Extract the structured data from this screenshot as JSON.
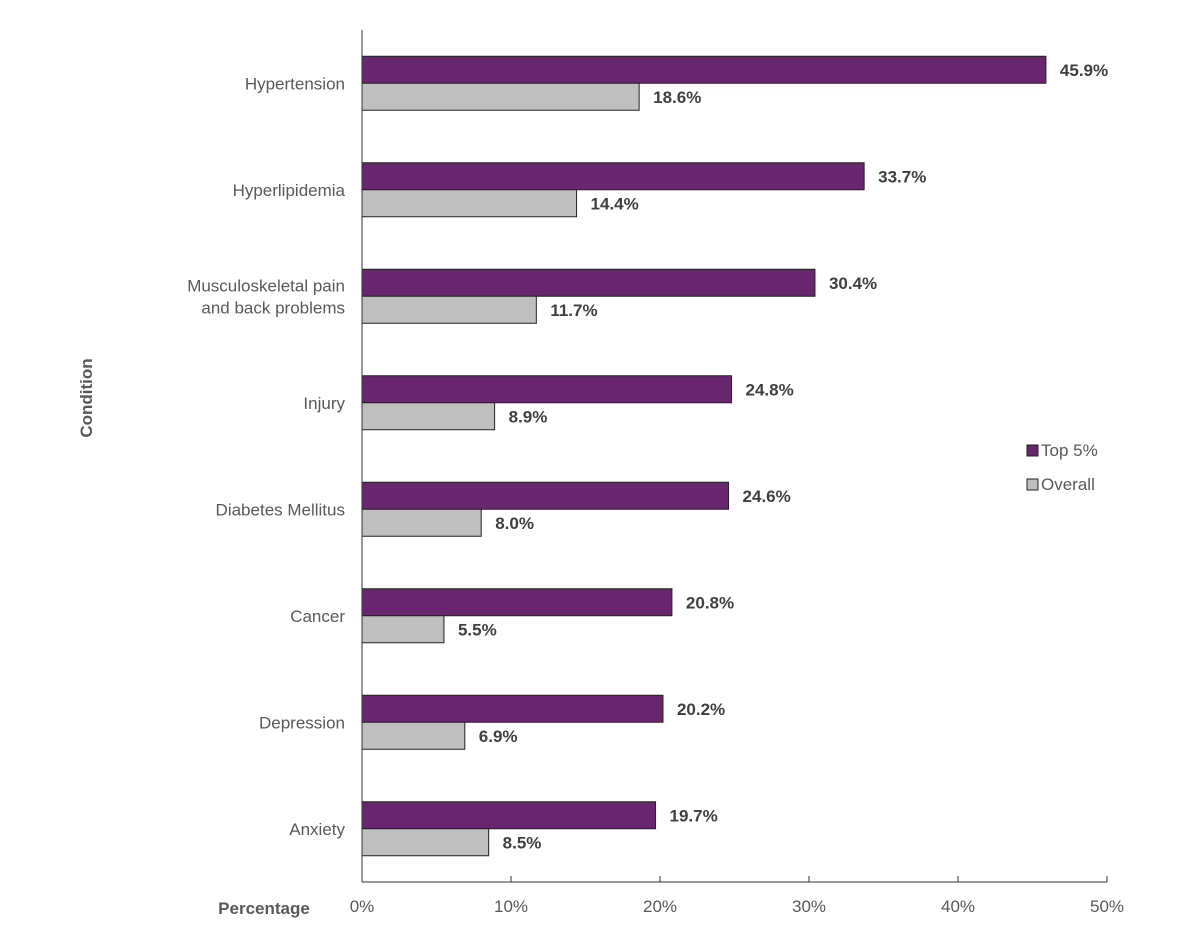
{
  "chart_data": {
    "type": "bar",
    "orientation": "horizontal",
    "title": "",
    "xlabel": "Percentage",
    "ylabel": "Condition",
    "xlim": [
      0,
      50
    ],
    "xticks": [
      "0%",
      "10%",
      "20%",
      "30%",
      "40%",
      "50%"
    ],
    "grid": false,
    "legend_position": "right",
    "categories": [
      [
        "Hypertension"
      ],
      [
        "Hyperlipidemia"
      ],
      [
        "Musculoskeletal pain",
        "and back problems"
      ],
      [
        "Injury"
      ],
      [
        "Diabetes Mellitus"
      ],
      [
        "Cancer"
      ],
      [
        "Depression"
      ],
      [
        "Anxiety"
      ]
    ],
    "series": [
      {
        "name": "Top 5%",
        "color": "#68266f",
        "values": [
          45.9,
          33.7,
          30.4,
          24.8,
          24.6,
          20.8,
          20.2,
          19.7
        ],
        "labels": [
          "45.9%",
          "33.7%",
          "30.4%",
          "24.8%",
          "24.6%",
          "20.8%",
          "20.2%",
          "19.7%"
        ]
      },
      {
        "name": "Overall",
        "color": "#bfbfbf",
        "values": [
          18.6,
          14.4,
          11.7,
          8.9,
          8.0,
          5.5,
          6.9,
          8.5
        ],
        "labels": [
          "18.6%",
          "14.4%",
          "11.7%",
          "8.9%",
          "8.0%",
          "5.5%",
          "6.9%",
          "8.5%"
        ]
      }
    ]
  }
}
